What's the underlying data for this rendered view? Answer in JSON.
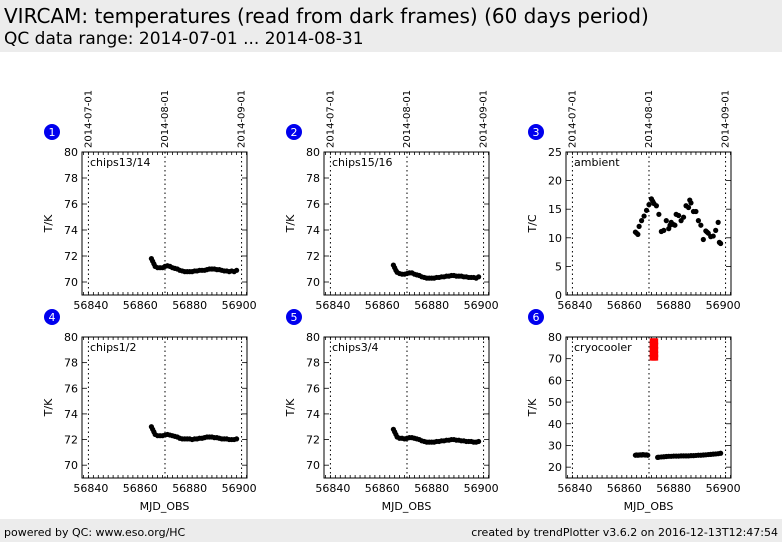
{
  "header": {
    "title": "VIRCAM: temperatures (read from dark frames) (60 days period)",
    "subtitle": "QC data range: 2014-07-01 ... 2014-08-31"
  },
  "footer": {
    "left": "powered by QC: www.eso.org/HC",
    "right": "created by trendPlotter v3.6.2 on 2016-12-13T12:47:54"
  },
  "colors": {
    "badge": "#0000ee",
    "badge_text": "#ffffff",
    "points": "#000000",
    "outlier": "#ff0000",
    "header_bg": "#ececec"
  },
  "chart_data": [
    {
      "type": "scatter",
      "badge": "1",
      "label": "chips13/14",
      "ylabel": "T/K",
      "xlabel": "",
      "xlim": [
        56836.4,
        56903.2
      ],
      "ylim": [
        69,
        80
      ],
      "yticks": [
        70,
        72,
        74,
        76,
        78,
        80
      ],
      "xticks": [
        56840,
        56860,
        56880,
        56900
      ],
      "date_ticks": [
        {
          "mjd": 56839,
          "label": "2014-07-01"
        },
        {
          "mjd": 56870,
          "label": "2014-08-01"
        },
        {
          "mjd": 56901,
          "label": "2014-09-01"
        }
      ],
      "x": [
        56864.5,
        56865,
        56865.5,
        56866,
        56867,
        56868,
        56869,
        56870,
        56871,
        56872,
        56873,
        56874,
        56875,
        56876,
        56877,
        56878,
        56879,
        56880,
        56881,
        56882,
        56883,
        56884,
        56885,
        56886,
        56887,
        56888,
        56889,
        56890,
        56891,
        56892,
        56893,
        56894,
        56895,
        56896,
        56897,
        56898,
        56899
      ],
      "y": [
        71.8,
        71.6,
        71.4,
        71.2,
        71.1,
        71.1,
        71.1,
        71.2,
        71.25,
        71.2,
        71.1,
        71.05,
        71.0,
        70.9,
        70.85,
        70.8,
        70.8,
        70.8,
        70.8,
        70.85,
        70.85,
        70.9,
        70.9,
        70.9,
        70.95,
        71.0,
        71.0,
        71.0,
        70.95,
        70.95,
        70.9,
        70.85,
        70.85,
        70.8,
        70.85,
        70.8,
        70.9
      ],
      "outliers": []
    },
    {
      "type": "scatter",
      "badge": "2",
      "label": "chips15/16",
      "ylabel": "T/K",
      "xlabel": "",
      "xlim": [
        56836.4,
        56903.2
      ],
      "ylim": [
        69,
        80
      ],
      "yticks": [
        70,
        72,
        74,
        76,
        78,
        80
      ],
      "xticks": [
        56840,
        56860,
        56880,
        56900
      ],
      "date_ticks": [
        {
          "mjd": 56839,
          "label": "2014-07-01"
        },
        {
          "mjd": 56870,
          "label": "2014-08-01"
        },
        {
          "mjd": 56901,
          "label": "2014-09-01"
        }
      ],
      "x": [
        56864.5,
        56865,
        56865.5,
        56866,
        56867,
        56868,
        56869,
        56870,
        56871,
        56872,
        56873,
        56874,
        56875,
        56876,
        56877,
        56878,
        56879,
        56880,
        56881,
        56882,
        56883,
        56884,
        56885,
        56886,
        56887,
        56888,
        56889,
        56890,
        56891,
        56892,
        56893,
        56894,
        56895,
        56896,
        56897,
        56898,
        56899
      ],
      "y": [
        71.3,
        71.1,
        70.9,
        70.75,
        70.65,
        70.6,
        70.6,
        70.65,
        70.7,
        70.7,
        70.6,
        70.55,
        70.5,
        70.4,
        70.35,
        70.3,
        70.3,
        70.3,
        70.3,
        70.35,
        70.35,
        70.4,
        70.4,
        70.45,
        70.45,
        70.5,
        70.5,
        70.45,
        70.45,
        70.45,
        70.4,
        70.4,
        70.35,
        70.35,
        70.35,
        70.3,
        70.4
      ],
      "outliers": []
    },
    {
      "type": "scatter",
      "badge": "3",
      "label": "ambient",
      "ylabel": "T/C",
      "xlabel": "",
      "xlim": [
        56836.4,
        56903.2
      ],
      "ylim": [
        0,
        25
      ],
      "yticks": [
        0,
        5,
        10,
        15,
        20,
        25
      ],
      "xticks": [
        56840,
        56860,
        56880,
        56900
      ],
      "date_ticks": [
        {
          "mjd": 56839,
          "label": "2014-07-01"
        },
        {
          "mjd": 56870,
          "label": "2014-08-01"
        },
        {
          "mjd": 56901,
          "label": "2014-09-01"
        }
      ],
      "x": [
        56864.5,
        56865,
        56865.5,
        56866,
        56867,
        56868,
        56869,
        56870,
        56871,
        56871.5,
        56872,
        56873,
        56874,
        56875,
        56876,
        56877,
        56878,
        56878.5,
        56879,
        56880,
        56880.5,
        56881,
        56882,
        56883,
        56884,
        56885,
        56886,
        56886.5,
        56887,
        56888,
        56889,
        56890,
        56891,
        56892,
        56893,
        56893.5,
        56894,
        56895,
        56896,
        56897,
        56898,
        56898.5,
        56899
      ],
      "y": [
        11,
        10.8,
        10.6,
        12,
        13,
        13.8,
        14.8,
        15.8,
        16.8,
        16.4,
        16,
        15.6,
        14.1,
        11.1,
        11.3,
        13,
        11.6,
        12.2,
        12.7,
        12.3,
        12.2,
        14.1,
        13.9,
        13,
        13.6,
        15.6,
        15.3,
        16.6,
        16.1,
        14.6,
        14.6,
        13,
        12.2,
        9.7,
        11.2,
        11,
        10.8,
        10.2,
        10.3,
        11.3,
        12.7,
        9.2,
        9
      ],
      "outliers": []
    },
    {
      "type": "scatter",
      "badge": "4",
      "label": "chips1/2",
      "ylabel": "T/K",
      "xlabel": "MJD_OBS",
      "xlim": [
        56836.4,
        56903.2
      ],
      "ylim": [
        69,
        80
      ],
      "yticks": [
        70,
        72,
        74,
        76,
        78,
        80
      ],
      "xticks": [
        56840,
        56860,
        56880,
        56900
      ],
      "date_ticks": [
        {
          "mjd": 56839,
          "label": ""
        },
        {
          "mjd": 56870,
          "label": ""
        },
        {
          "mjd": 56901,
          "label": ""
        }
      ],
      "x": [
        56864.5,
        56865,
        56865.5,
        56866,
        56867,
        56868,
        56869,
        56870,
        56871,
        56872,
        56873,
        56874,
        56875,
        56876,
        56877,
        56878,
        56879,
        56880,
        56881,
        56882,
        56883,
        56884,
        56885,
        56886,
        56887,
        56888,
        56889,
        56890,
        56891,
        56892,
        56893,
        56894,
        56895,
        56896,
        56897,
        56898,
        56899
      ],
      "y": [
        73.0,
        72.8,
        72.6,
        72.4,
        72.3,
        72.3,
        72.3,
        72.35,
        72.4,
        72.35,
        72.3,
        72.25,
        72.2,
        72.1,
        72.05,
        72.05,
        72.05,
        72.05,
        72.0,
        72.05,
        72.05,
        72.1,
        72.1,
        72.15,
        72.2,
        72.2,
        72.2,
        72.15,
        72.15,
        72.1,
        72.05,
        72.05,
        72.05,
        72.0,
        72.0,
        72.0,
        72.05
      ],
      "outliers": []
    },
    {
      "type": "scatter",
      "badge": "5",
      "label": "chips3/4",
      "ylabel": "T/K",
      "xlabel": "MJD_OBS",
      "xlim": [
        56836.4,
        56903.2
      ],
      "ylim": [
        69,
        80
      ],
      "yticks": [
        70,
        72,
        74,
        76,
        78,
        80
      ],
      "xticks": [
        56840,
        56860,
        56880,
        56900
      ],
      "date_ticks": [
        {
          "mjd": 56839,
          "label": ""
        },
        {
          "mjd": 56870,
          "label": ""
        },
        {
          "mjd": 56901,
          "label": ""
        }
      ],
      "x": [
        56864.5,
        56865,
        56865.5,
        56866,
        56867,
        56868,
        56869,
        56870,
        56871,
        56872,
        56873,
        56874,
        56875,
        56876,
        56877,
        56878,
        56879,
        56880,
        56881,
        56882,
        56883,
        56884,
        56885,
        56886,
        56887,
        56888,
        56889,
        56890,
        56891,
        56892,
        56893,
        56894,
        56895,
        56896,
        56897,
        56898,
        56899
      ],
      "y": [
        72.8,
        72.6,
        72.4,
        72.2,
        72.1,
        72.1,
        72.05,
        72.1,
        72.15,
        72.15,
        72.1,
        72.05,
        72.0,
        71.9,
        71.85,
        71.8,
        71.8,
        71.8,
        71.8,
        71.85,
        71.85,
        71.9,
        71.9,
        71.95,
        71.95,
        72.0,
        72.0,
        71.95,
        71.95,
        71.9,
        71.9,
        71.85,
        71.85,
        71.85,
        71.8,
        71.8,
        71.85
      ],
      "outliers": []
    },
    {
      "type": "scatter",
      "badge": "6",
      "label": "cryocooler",
      "ylabel": "T/K",
      "xlabel": "MJD_OBS",
      "xlim": [
        56836.4,
        56903.2
      ],
      "ylim": [
        15,
        80
      ],
      "yticks": [
        20,
        30,
        40,
        50,
        60,
        70,
        80
      ],
      "xticks": [
        56840,
        56860,
        56880,
        56900
      ],
      "date_ticks": [
        {
          "mjd": 56839,
          "label": ""
        },
        {
          "mjd": 56870,
          "label": ""
        },
        {
          "mjd": 56901,
          "label": ""
        }
      ],
      "x": [
        56864.5,
        56865,
        56865.5,
        56866,
        56866.5,
        56867,
        56867.5,
        56868,
        56868.5,
        56869,
        56869.5,
        56873.5,
        56874,
        56875,
        56876,
        56877,
        56878,
        56879,
        56880,
        56881,
        56882,
        56883,
        56884,
        56885,
        56886,
        56887,
        56888,
        56889,
        56890,
        56891,
        56892,
        56893,
        56894,
        56895,
        56896,
        56897,
        56898,
        56899
      ],
      "y": [
        25.5,
        25.6,
        25.5,
        25.6,
        25.7,
        25.6,
        25.8,
        25.7,
        25.6,
        25.7,
        25.5,
        24.5,
        24.6,
        24.7,
        24.8,
        24.9,
        25.0,
        25.0,
        25.1,
        25.1,
        25.1,
        25.2,
        25.2,
        25.2,
        25.2,
        25.3,
        25.3,
        25.4,
        25.5,
        25.5,
        25.6,
        25.7,
        25.8,
        25.9,
        26.0,
        26.1,
        26.2,
        26.4
      ],
      "outliers": [
        {
          "x": 56871.5,
          "y": 78
        },
        {
          "x": 56871.5,
          "y": 76
        },
        {
          "x": 56871.5,
          "y": 74
        },
        {
          "x": 56871.5,
          "y": 72
        },
        {
          "x": 56871.5,
          "y": 70.5
        },
        {
          "x": 56872,
          "y": 78
        },
        {
          "x": 56872,
          "y": 76
        },
        {
          "x": 56872,
          "y": 74
        },
        {
          "x": 56872,
          "y": 72
        },
        {
          "x": 56872,
          "y": 70.5
        },
        {
          "x": 56872.5,
          "y": 78
        },
        {
          "x": 56872.5,
          "y": 76
        },
        {
          "x": 56872.5,
          "y": 74
        },
        {
          "x": 56872.5,
          "y": 72
        },
        {
          "x": 56872.5,
          "y": 70.5
        }
      ]
    }
  ]
}
